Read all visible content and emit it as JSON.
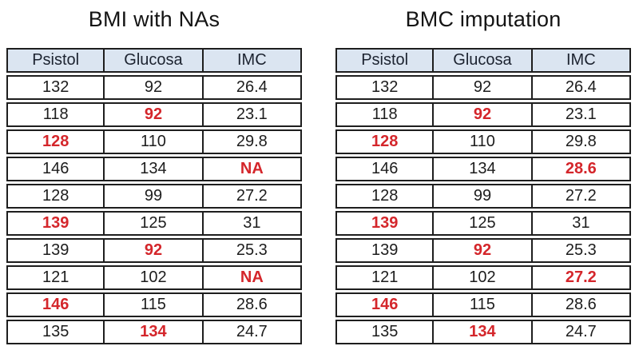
{
  "colors": {
    "red_highlight": "#d4262b",
    "header_bg": "#dbe5f1",
    "border": "#1e1e1e",
    "cell_text": "#1d1d1d",
    "title_text": "#141414"
  },
  "chart_data": [
    {
      "type": "table",
      "title": "BMI with NAs",
      "columns": [
        "Psistol",
        "Glucosa",
        "IMC"
      ],
      "highlight_color_meaning": "red bold values are highlighted (NA = missing value)",
      "rows": [
        [
          {
            "v": "132"
          },
          {
            "v": "92"
          },
          {
            "v": "26.4"
          }
        ],
        [
          {
            "v": "118"
          },
          {
            "v": "92",
            "red": true
          },
          {
            "v": "23.1"
          }
        ],
        [
          {
            "v": "128",
            "red": true
          },
          {
            "v": "110"
          },
          {
            "v": "29.8"
          }
        ],
        [
          {
            "v": "146"
          },
          {
            "v": "134"
          },
          {
            "v": "NA",
            "red": true
          }
        ],
        [
          {
            "v": "128"
          },
          {
            "v": "99"
          },
          {
            "v": "27.2"
          }
        ],
        [
          {
            "v": "139",
            "red": true
          },
          {
            "v": "125"
          },
          {
            "v": "31"
          }
        ],
        [
          {
            "v": "139"
          },
          {
            "v": "92",
            "red": true
          },
          {
            "v": "25.3"
          }
        ],
        [
          {
            "v": "121"
          },
          {
            "v": "102"
          },
          {
            "v": "NA",
            "red": true
          }
        ],
        [
          {
            "v": "146",
            "red": true
          },
          {
            "v": "115"
          },
          {
            "v": "28.6"
          }
        ],
        [
          {
            "v": "135"
          },
          {
            "v": "134",
            "red": true
          },
          {
            "v": "24.7"
          }
        ]
      ]
    },
    {
      "type": "table",
      "title": "BMC imputation",
      "columns": [
        "Psistol",
        "Glucosa",
        "IMC"
      ],
      "highlight_color_meaning": "red bold values are highlighted (imputed values replace NA)",
      "rows": [
        [
          {
            "v": "132"
          },
          {
            "v": "92"
          },
          {
            "v": "26.4"
          }
        ],
        [
          {
            "v": "118"
          },
          {
            "v": "92",
            "red": true
          },
          {
            "v": "23.1"
          }
        ],
        [
          {
            "v": "128",
            "red": true
          },
          {
            "v": "110"
          },
          {
            "v": "29.8"
          }
        ],
        [
          {
            "v": "146"
          },
          {
            "v": "134"
          },
          {
            "v": "28.6",
            "red": true
          }
        ],
        [
          {
            "v": "128"
          },
          {
            "v": "99"
          },
          {
            "v": "27.2"
          }
        ],
        [
          {
            "v": "139",
            "red": true
          },
          {
            "v": "125"
          },
          {
            "v": "31"
          }
        ],
        [
          {
            "v": "139"
          },
          {
            "v": "92",
            "red": true
          },
          {
            "v": "25.3"
          }
        ],
        [
          {
            "v": "121"
          },
          {
            "v": "102"
          },
          {
            "v": "27.2",
            "red": true
          }
        ],
        [
          {
            "v": "146",
            "red": true
          },
          {
            "v": "115"
          },
          {
            "v": "28.6"
          }
        ],
        [
          {
            "v": "135"
          },
          {
            "v": "134",
            "red": true
          },
          {
            "v": "24.7"
          }
        ]
      ]
    }
  ]
}
